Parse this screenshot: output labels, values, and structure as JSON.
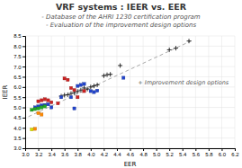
{
  "chart_data": {
    "type": "scatter",
    "title": "VRF systems : IEER vs. EER",
    "subtitle": [
      "- Database of the AHRI 1230 certification program",
      "- Evaluation of the improvement design options"
    ],
    "x_label": "EER",
    "y_label": "IEER",
    "xlim": [
      3.0,
      6.2
    ],
    "ylim": [
      3.0,
      8.5
    ],
    "xticks": [
      {
        "value": 3.0,
        "label": "3.0"
      },
      3.2,
      3.4,
      3.6,
      3.8,
      {
        "value": 4.0,
        "label": "4.0"
      },
      4.2,
      4.4,
      4.6,
      4.8,
      {
        "value": 5.0,
        "label": "5.0"
      },
      5.2,
      5.4,
      5.6,
      5.8,
      {
        "value": 6.0,
        "label": "6.0"
      },
      6.2
    ],
    "yticks": [
      {
        "value": 3.0,
        "label": "3.0"
      },
      3.5,
      {
        "value": 4.0,
        "label": "4.0"
      },
      4.5,
      {
        "value": 5.0,
        "label": "5.0"
      },
      5.5,
      {
        "value": 6.0,
        "label": "6.0"
      },
      6.5,
      {
        "value": 7.0,
        "label": "7.0"
      },
      7.5,
      {
        "value": 8.0,
        "label": "8.0"
      },
      8.5
    ],
    "grid": true,
    "annotations": [
      {
        "text": "+ Improvement design options",
        "x": 4.72,
        "y": 6.2
      }
    ],
    "series": [
      {
        "type": "line",
        "line_style": "dashed",
        "color": "#aaaaaa",
        "x": [
          3.05,
          5.55
        ],
        "values": [
          4.55,
          8.28
        ]
      },
      {
        "type": "scatter",
        "marker": "plus",
        "color": "#000000",
        "x": [
          3.55,
          3.6,
          3.65,
          3.7,
          3.75,
          3.8,
          3.85,
          3.9,
          3.95,
          4.0,
          4.05,
          4.1,
          4.2,
          4.25,
          4.3,
          4.45,
          5.2,
          5.3,
          5.5
        ],
        "values": [
          5.55,
          5.6,
          5.62,
          5.68,
          5.72,
          5.78,
          5.85,
          5.95,
          5.9,
          6.0,
          6.05,
          6.1,
          6.55,
          6.6,
          6.62,
          7.05,
          7.82,
          7.9,
          8.25
        ]
      },
      {
        "type": "scatter",
        "marker": "square",
        "color": "#cc2222",
        "x": [
          3.2,
          3.25,
          3.3,
          3.35,
          3.4,
          3.5,
          3.6,
          3.65,
          3.7,
          3.75,
          3.8,
          3.9
        ],
        "values": [
          5.3,
          5.35,
          5.4,
          5.35,
          5.25,
          5.2,
          6.42,
          6.35,
          5.95,
          5.85,
          5.5,
          5.8
        ]
      },
      {
        "type": "scatter",
        "marker": "square",
        "color": "#2244cc",
        "x": [
          3.15,
          3.2,
          3.25,
          3.3,
          3.35,
          3.4,
          3.55,
          3.7,
          3.75,
          3.8,
          3.85,
          3.9,
          4.0,
          4.05,
          4.1,
          4.5
        ],
        "values": [
          5.0,
          5.05,
          5.1,
          5.12,
          5.15,
          5.0,
          5.5,
          5.5,
          4.95,
          6.05,
          6.1,
          6.15,
          5.8,
          5.75,
          5.82,
          6.45
        ]
      },
      {
        "type": "scatter",
        "marker": "square",
        "color": "#22aa22",
        "x": [
          3.1,
          3.15,
          3.2,
          3.25,
          3.3
        ],
        "values": [
          4.88,
          4.92,
          4.95,
          5.0,
          5.05
        ]
      },
      {
        "type": "scatter",
        "marker": "square",
        "color": "#ff8800",
        "x": [
          3.2,
          3.25,
          3.15
        ],
        "values": [
          4.72,
          4.65,
          3.95
        ]
      },
      {
        "type": "scatter",
        "marker": "square",
        "color": "#dddd00",
        "x": [
          3.1
        ],
        "values": [
          3.92
        ]
      }
    ]
  }
}
